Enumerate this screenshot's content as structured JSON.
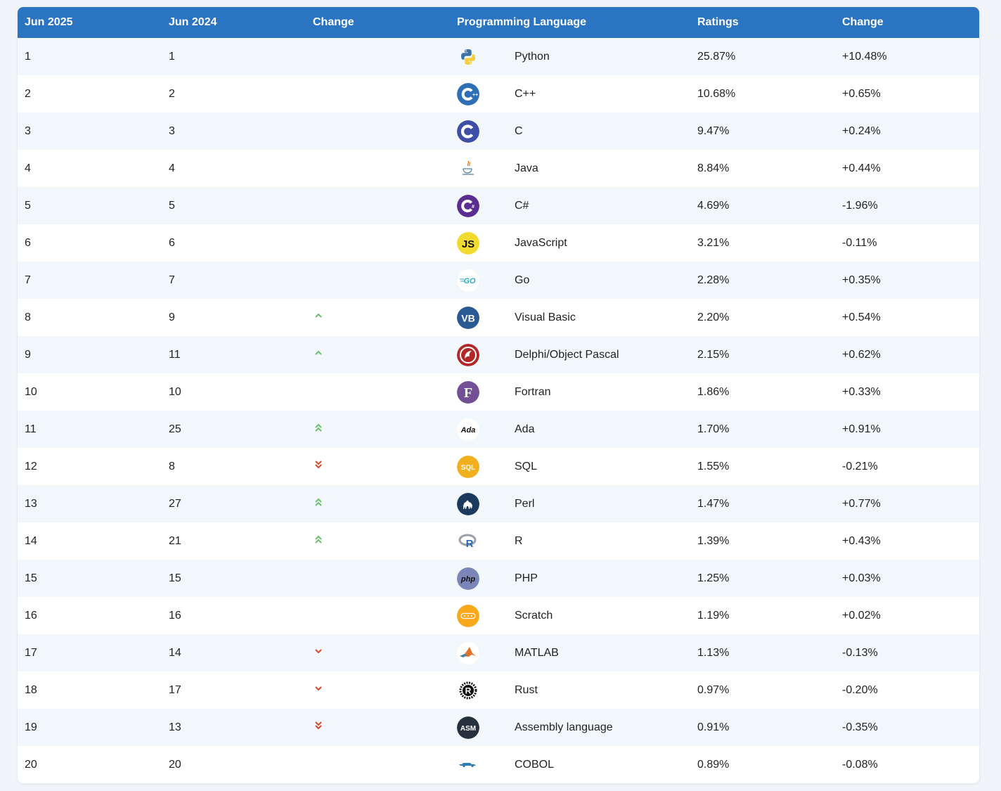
{
  "table": {
    "headers": [
      "Jun 2025",
      "Jun 2024",
      "Change",
      "Programming Language",
      "Ratings",
      "Change"
    ],
    "rows": [
      {
        "jun2025": "1",
        "jun2024": "1",
        "trend": "none",
        "icon": "python-logo-icon",
        "language": "Python",
        "rating": "25.87%",
        "change": "+10.48%"
      },
      {
        "jun2025": "2",
        "jun2024": "2",
        "trend": "none",
        "icon": "cpp-logo-icon",
        "language": "C++",
        "rating": "10.68%",
        "change": "+0.65%"
      },
      {
        "jun2025": "3",
        "jun2024": "3",
        "trend": "none",
        "icon": "c-logo-icon",
        "language": "C",
        "rating": "9.47%",
        "change": "+0.24%"
      },
      {
        "jun2025": "4",
        "jun2024": "4",
        "trend": "none",
        "icon": "java-logo-icon",
        "language": "Java",
        "rating": "8.84%",
        "change": "+0.44%"
      },
      {
        "jun2025": "5",
        "jun2024": "5",
        "trend": "none",
        "icon": "csharp-logo-icon",
        "language": "C#",
        "rating": "4.69%",
        "change": "-1.96%"
      },
      {
        "jun2025": "6",
        "jun2024": "6",
        "trend": "none",
        "icon": "javascript-logo-icon",
        "language": "JavaScript",
        "rating": "3.21%",
        "change": "-0.11%"
      },
      {
        "jun2025": "7",
        "jun2024": "7",
        "trend": "none",
        "icon": "go-logo-icon",
        "language": "Go",
        "rating": "2.28%",
        "change": "+0.35%"
      },
      {
        "jun2025": "8",
        "jun2024": "9",
        "trend": "up",
        "icon": "visual-basic-logo-icon",
        "language": "Visual Basic",
        "rating": "2.20%",
        "change": "+0.54%"
      },
      {
        "jun2025": "9",
        "jun2024": "11",
        "trend": "up",
        "icon": "delphi-logo-icon",
        "language": "Delphi/Object Pascal",
        "rating": "2.15%",
        "change": "+0.62%"
      },
      {
        "jun2025": "10",
        "jun2024": "10",
        "trend": "none",
        "icon": "fortran-logo-icon",
        "language": "Fortran",
        "rating": "1.86%",
        "change": "+0.33%"
      },
      {
        "jun2025": "11",
        "jun2024": "25",
        "trend": "double-up",
        "icon": "ada-logo-icon",
        "language": "Ada",
        "rating": "1.70%",
        "change": "+0.91%"
      },
      {
        "jun2025": "12",
        "jun2024": "8",
        "trend": "double-down",
        "icon": "sql-logo-icon",
        "language": "SQL",
        "rating": "1.55%",
        "change": "-0.21%"
      },
      {
        "jun2025": "13",
        "jun2024": "27",
        "trend": "double-up",
        "icon": "perl-logo-icon",
        "language": "Perl",
        "rating": "1.47%",
        "change": "+0.77%"
      },
      {
        "jun2025": "14",
        "jun2024": "21",
        "trend": "double-up",
        "icon": "r-logo-icon",
        "language": "R",
        "rating": "1.39%",
        "change": "+0.43%"
      },
      {
        "jun2025": "15",
        "jun2024": "15",
        "trend": "none",
        "icon": "php-logo-icon",
        "language": "PHP",
        "rating": "1.25%",
        "change": "+0.03%"
      },
      {
        "jun2025": "16",
        "jun2024": "16",
        "trend": "none",
        "icon": "scratch-logo-icon",
        "language": "Scratch",
        "rating": "1.19%",
        "change": "+0.02%"
      },
      {
        "jun2025": "17",
        "jun2024": "14",
        "trend": "down",
        "icon": "matlab-logo-icon",
        "language": "MATLAB",
        "rating": "1.13%",
        "change": "-0.13%"
      },
      {
        "jun2025": "18",
        "jun2024": "17",
        "trend": "down",
        "icon": "rust-logo-icon",
        "language": "Rust",
        "rating": "0.97%",
        "change": "-0.20%"
      },
      {
        "jun2025": "19",
        "jun2024": "13",
        "trend": "double-down",
        "icon": "assembly-logo-icon",
        "language": "Assembly language",
        "rating": "0.91%",
        "change": "-0.35%"
      },
      {
        "jun2025": "20",
        "jun2024": "20",
        "trend": "none",
        "icon": "cobol-logo-icon",
        "language": "COBOL",
        "rating": "0.89%",
        "change": "-0.08%"
      }
    ]
  },
  "colors": {
    "header_bg": "#2b74c1",
    "trend_up": "#6cbf6c",
    "trend_down": "#d9472b"
  }
}
